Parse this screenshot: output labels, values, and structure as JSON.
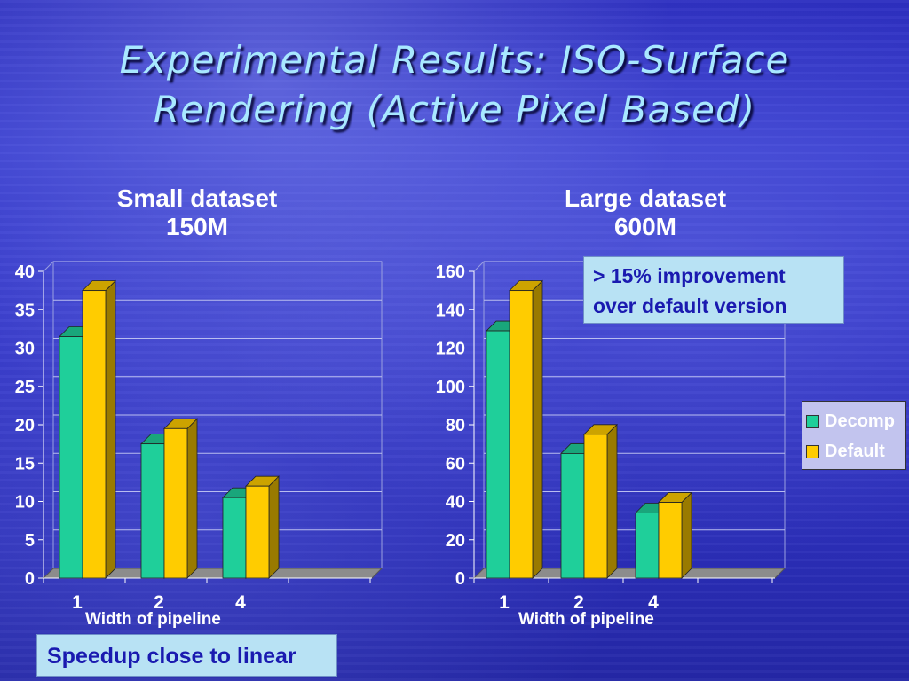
{
  "slide": {
    "title_line1": "Experimental Results: ISO-Surface",
    "title_line2": "Rendering (Active Pixel Based)",
    "improvement_note": [
      "> 15% improvement",
      "over default version"
    ],
    "speedup_note": "Speedup close to linear"
  },
  "colors": {
    "decomp": "#1fcf9a",
    "default": "#ffcc00",
    "title": "#a8e8ff"
  },
  "legend": [
    {
      "name": "Decomp",
      "color": "#1fcf9a"
    },
    {
      "name": "Default",
      "color": "#ffcc00"
    }
  ],
  "chart_data": [
    {
      "type": "bar",
      "title": [
        "Small dataset",
        "150M"
      ],
      "xlabel": "Width of pipeline",
      "ylabel": "",
      "categories": [
        "1",
        "2",
        "4"
      ],
      "ylim": [
        0,
        40
      ],
      "yticks": [
        0,
        5,
        10,
        15,
        20,
        25,
        30,
        35,
        40
      ],
      "grid": true,
      "series": [
        {
          "name": "Decomp",
          "values": [
            31.5,
            17.5,
            10.5
          ]
        },
        {
          "name": "Default",
          "values": [
            37.5,
            19.5,
            12
          ]
        }
      ]
    },
    {
      "type": "bar",
      "title": [
        "Large dataset",
        "600M"
      ],
      "xlabel": "Width of pipeline",
      "ylabel": "",
      "categories": [
        "1",
        "2",
        "4"
      ],
      "ylim": [
        0,
        160
      ],
      "yticks": [
        0,
        20,
        40,
        60,
        80,
        100,
        120,
        140,
        160
      ],
      "grid": true,
      "legend_position": "right",
      "series": [
        {
          "name": "Decomp",
          "values": [
            129,
            65,
            34
          ]
        },
        {
          "name": "Default",
          "values": [
            150,
            75,
            39.5
          ]
        }
      ]
    }
  ]
}
